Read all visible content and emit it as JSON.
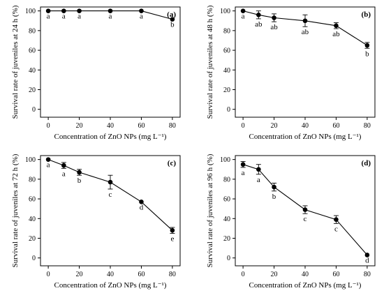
{
  "chart_data": [
    {
      "type": "line",
      "panel_label": "(a)",
      "ylabel": "Survival rate of juveniles at 24 h (%)",
      "xlabel": "Concentration of ZnO NPs (mg L⁻¹)",
      "x": [
        0,
        10,
        20,
        40,
        60,
        80
      ],
      "x_ticks": [
        0,
        20,
        40,
        60,
        80
      ],
      "y_ticks": [
        0,
        20,
        40,
        60,
        80,
        100
      ],
      "xlim": [
        -5,
        85
      ],
      "ylim": [
        -8,
        104
      ],
      "series": [
        {
          "values": [
            100,
            100,
            100,
            100,
            100,
            91.5
          ],
          "errors": [
            0,
            0,
            0,
            0,
            0,
            0
          ],
          "letters": [
            "a",
            "a",
            "a",
            "a",
            "a",
            "b"
          ]
        }
      ]
    },
    {
      "type": "line",
      "panel_label": "(b)",
      "ylabel": "Survival rate of juveniles at 48 h (%)",
      "xlabel": "Concentration of ZnO NPs (mg L⁻¹)",
      "x": [
        0,
        10,
        20,
        40,
        60,
        80
      ],
      "x_ticks": [
        0,
        20,
        40,
        60,
        80
      ],
      "y_ticks": [
        0,
        20,
        40,
        60,
        80,
        100
      ],
      "xlim": [
        -5,
        85
      ],
      "ylim": [
        -8,
        104
      ],
      "series": [
        {
          "values": [
            100,
            96,
            93,
            90,
            85,
            65
          ],
          "errors": [
            0,
            4,
            4,
            6,
            3,
            3
          ],
          "letters": [
            "a",
            "ab",
            "ab",
            "ab",
            "ab",
            "b"
          ]
        }
      ]
    },
    {
      "type": "line",
      "panel_label": "(c)",
      "ylabel": "Survival rate of juveniles at 72 h (%)",
      "xlabel": "Concentration of ZnO NPs (mg L⁻¹)",
      "x": [
        0,
        10,
        20,
        40,
        60,
        80
      ],
      "x_ticks": [
        0,
        20,
        40,
        60,
        80
      ],
      "y_ticks": [
        0,
        20,
        40,
        60,
        80,
        100
      ],
      "xlim": [
        -5,
        85
      ],
      "ylim": [
        -8,
        104
      ],
      "series": [
        {
          "values": [
            100,
            94,
            87,
            77,
            57,
            28
          ],
          "errors": [
            0,
            3,
            3,
            7,
            0,
            3
          ],
          "letters": [
            "a",
            "a",
            "b",
            "c",
            "d",
            "e"
          ]
        }
      ]
    },
    {
      "type": "line",
      "panel_label": "(d)",
      "ylabel": "Survival rate of juveniles at 96 h (%)",
      "xlabel": "Concentration of ZnO NPs (mg L⁻¹)",
      "x": [
        0,
        10,
        20,
        40,
        60,
        80
      ],
      "x_ticks": [
        0,
        20,
        40,
        60,
        80
      ],
      "y_ticks": [
        0,
        20,
        40,
        60,
        80,
        100
      ],
      "xlim": [
        -5,
        85
      ],
      "ylim": [
        -8,
        104
      ],
      "series": [
        {
          "values": [
            95,
            90,
            72,
            49,
            39,
            3
          ],
          "errors": [
            3,
            5,
            4,
            4,
            4,
            0
          ],
          "letters": [
            "a",
            "a",
            "b",
            "c",
            "c",
            "d"
          ]
        }
      ]
    }
  ]
}
